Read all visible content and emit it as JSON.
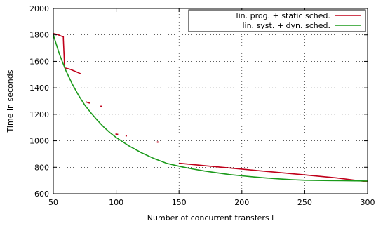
{
  "chart_data": {
    "type": "line",
    "xlabel": "Number of concurrent transfers l",
    "ylabel": "Time in seconds",
    "xlim": [
      50,
      300
    ],
    "ylim": [
      600,
      2000
    ],
    "xticks": [
      50,
      100,
      150,
      200,
      250,
      300
    ],
    "yticks": [
      600,
      800,
      1000,
      1200,
      1400,
      1600,
      1800,
      2000
    ],
    "grid": true,
    "legend_position": "top-right",
    "series": [
      {
        "name": "lin. prog. + static sched.",
        "color": "#c0001a",
        "segments": [
          {
            "x": [
              50,
              52,
              54,
              56,
              58,
              58
            ],
            "y": [
              1810,
              1806,
              1800,
              1792,
              1784,
              1770
            ]
          },
          {
            "x": [
              58,
              59
            ],
            "y": [
              1770,
              1550
            ]
          },
          {
            "x": [
              59,
              60,
              62,
              64,
              66,
              68,
              70,
              72
            ],
            "y": [
              1550,
              1548,
              1544,
              1538,
              1530,
              1522,
              1514,
              1505
            ]
          },
          {
            "x": [
              76,
              77,
              79
            ],
            "y": [
              1294,
              1290,
              1284
            ]
          },
          {
            "x": [
              150,
              175,
              200,
              225,
              250,
              275,
              300
            ],
            "y": [
              830,
              808,
              786,
              764,
              742,
              720,
              690
            ]
          }
        ],
        "points": [
          {
            "x": 88,
            "y": 1260
          },
          {
            "x": 100,
            "y": 1050
          },
          {
            "x": 101,
            "y": 1048
          },
          {
            "x": 108,
            "y": 1038
          },
          {
            "x": 133,
            "y": 990
          }
        ]
      },
      {
        "name": "lin. syst. + dyn. sched.",
        "color": "#1a9a1a",
        "x": [
          50,
          55,
          60,
          65,
          70,
          75,
          80,
          85,
          90,
          95,
          100,
          110,
          120,
          130,
          140,
          150,
          160,
          170,
          180,
          190,
          200,
          210,
          220,
          230,
          240,
          250,
          260,
          270,
          280,
          290,
          300
        ],
        "y": [
          1800,
          1650,
          1530,
          1430,
          1345,
          1270,
          1210,
          1155,
          1105,
          1062,
          1025,
          962,
          910,
          866,
          830,
          808,
          788,
          772,
          758,
          745,
          735,
          726,
          718,
          712,
          706,
          702,
          700,
          699,
          698,
          697,
          696
        ]
      }
    ]
  }
}
